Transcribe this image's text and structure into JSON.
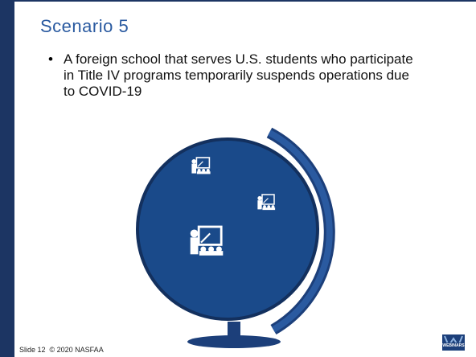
{
  "slide": {
    "title": "Scenario 5",
    "bullet": "A foreign school that serves U.S. students who participate in Title IV programs temporarily suspends operations due to COVID-19",
    "footer": "Slide 12  © 2020 NASFAA",
    "logo": "WEBINARS"
  }
}
